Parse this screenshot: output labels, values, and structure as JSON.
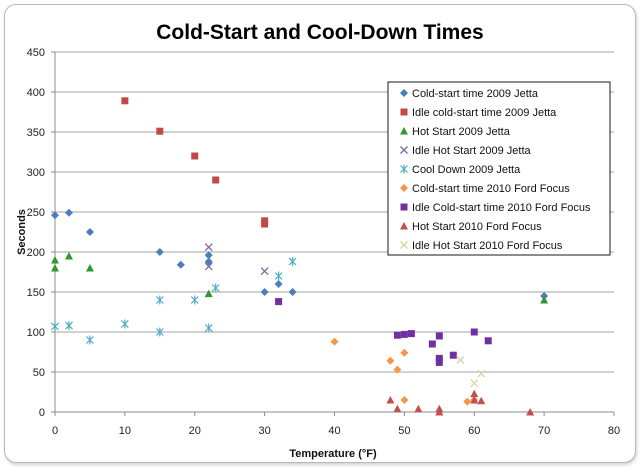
{
  "chart_data": {
    "type": "scatter",
    "title": "Cold-Start and Cool-Down Times",
    "xlabel": "Temperature (°F)",
    "ylabel": "Seconds",
    "xlim": [
      0,
      80
    ],
    "ylim": [
      0,
      450
    ],
    "xticks": [
      0,
      10,
      20,
      30,
      40,
      50,
      60,
      70,
      80
    ],
    "yticks": [
      0,
      50,
      100,
      150,
      200,
      250,
      300,
      350,
      400,
      450
    ],
    "grid": "horizontal",
    "legend_position": "right",
    "series": [
      {
        "name": "Cold-start time 2009 Jetta",
        "marker": "diamond",
        "color": "#4a7ebb",
        "points": [
          [
            0,
            246
          ],
          [
            2,
            249
          ],
          [
            5,
            225
          ],
          [
            15,
            200
          ],
          [
            18,
            184
          ],
          [
            22,
            196
          ],
          [
            22,
            188
          ],
          [
            30,
            150
          ],
          [
            32,
            160
          ],
          [
            34,
            150
          ],
          [
            70,
            145
          ]
        ]
      },
      {
        "name": "Idle cold-start time 2009 Jetta",
        "marker": "square",
        "color": "#be4b48",
        "points": [
          [
            10,
            389
          ],
          [
            15,
            351
          ],
          [
            20,
            320
          ],
          [
            23,
            290
          ],
          [
            30,
            239
          ],
          [
            30,
            235
          ]
        ]
      },
      {
        "name": "Hot Start 2009 Jetta",
        "marker": "triangle",
        "color": "#2e9a2e",
        "points": [
          [
            0,
            190
          ],
          [
            0,
            180
          ],
          [
            2,
            195
          ],
          [
            5,
            180
          ],
          [
            22,
            148
          ],
          [
            70,
            140
          ]
        ]
      },
      {
        "name": "Idle Hot Start 2009 Jetta",
        "marker": "x",
        "color": "#8064a2",
        "points": [
          [
            22,
            206
          ],
          [
            22,
            182
          ],
          [
            30,
            176
          ]
        ]
      },
      {
        "name": "Cool Down 2009 Jetta",
        "marker": "star",
        "color": "#4bacc6",
        "points": [
          [
            0,
            107
          ],
          [
            2,
            108
          ],
          [
            5,
            90
          ],
          [
            10,
            110
          ],
          [
            15,
            140
          ],
          [
            15,
            100
          ],
          [
            20,
            140
          ],
          [
            22,
            105
          ],
          [
            23,
            155
          ],
          [
            32,
            170
          ],
          [
            34,
            188
          ]
        ]
      },
      {
        "name": "Cold-start  time 2010 Ford Focus",
        "marker": "diamond",
        "color": "#f79646",
        "points": [
          [
            40,
            88
          ],
          [
            48,
            64
          ],
          [
            49,
            53
          ],
          [
            50,
            74
          ],
          [
            50,
            15
          ],
          [
            59,
            13
          ],
          [
            60,
            15
          ]
        ]
      },
      {
        "name": "Idle Cold-start  time 2010 Ford Focus",
        "marker": "square",
        "color": "#7030a0",
        "points": [
          [
            32,
            138
          ],
          [
            49,
            96
          ],
          [
            50,
            97
          ],
          [
            51,
            98
          ],
          [
            54,
            85
          ],
          [
            55,
            95
          ],
          [
            55,
            67
          ],
          [
            55,
            62
          ],
          [
            57,
            71
          ],
          [
            60,
            100
          ],
          [
            62,
            89
          ]
        ]
      },
      {
        "name": "Hot Start 2010 Ford Focus",
        "marker": "triangle",
        "color": "#c0504d",
        "points": [
          [
            48,
            15
          ],
          [
            49,
            4
          ],
          [
            52,
            4
          ],
          [
            55,
            4
          ],
          [
            55,
            0
          ],
          [
            60,
            23
          ],
          [
            60,
            15
          ],
          [
            61,
            14
          ],
          [
            68,
            0
          ]
        ]
      },
      {
        "name": "Idle Hot Start 2010 Ford Focus",
        "marker": "x",
        "color": "#dcd3a0",
        "points": [
          [
            58,
            65
          ],
          [
            60,
            36
          ],
          [
            61,
            48
          ]
        ]
      }
    ]
  }
}
